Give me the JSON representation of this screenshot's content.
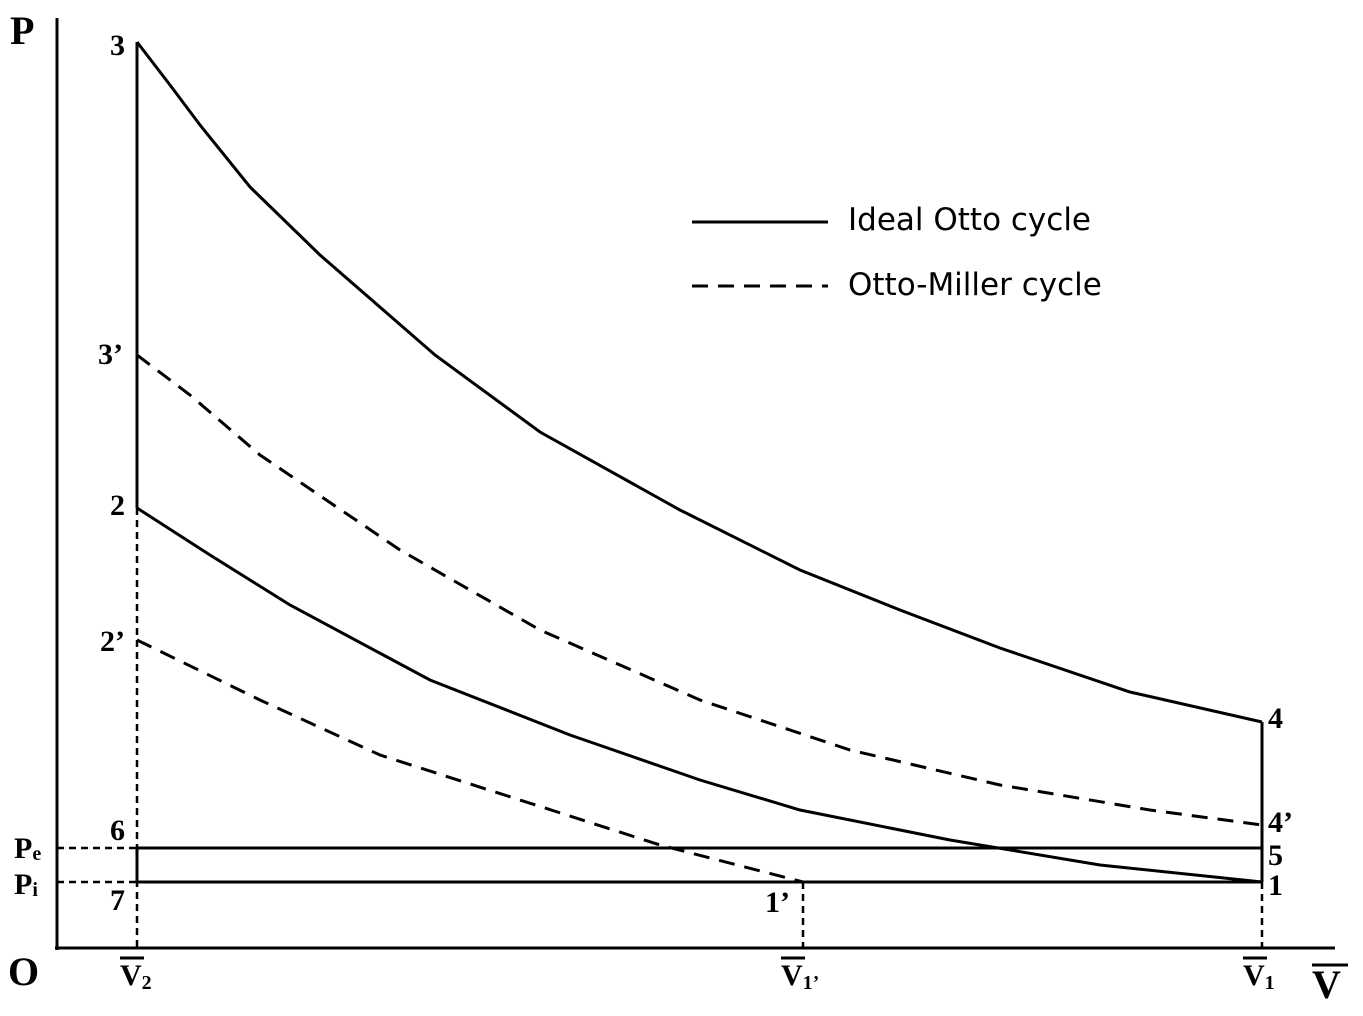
{
  "axes": {
    "pressure": "P",
    "origin": "O",
    "volume": "V"
  },
  "volume_marks": [
    {
      "base": "V",
      "sub": "2"
    },
    {
      "base": "V",
      "sub": "1’"
    },
    {
      "base": "V",
      "sub": "1"
    }
  ],
  "pressure_marks": [
    {
      "base": "P",
      "sub": "e"
    },
    {
      "base": "P",
      "sub": "i"
    }
  ],
  "points": [
    "3",
    "3’",
    "2",
    "2’",
    "6",
    "7",
    "1’",
    "4",
    "4’",
    "5",
    "1"
  ],
  "legend": [
    "Ideal Otto cycle",
    "Otto-Miller cycle"
  ]
}
